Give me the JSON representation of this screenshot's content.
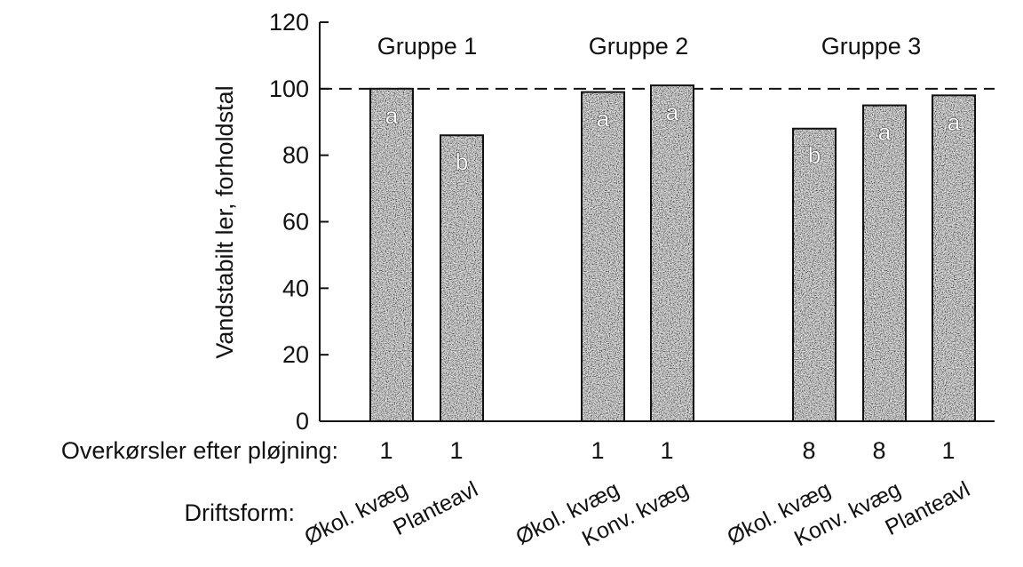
{
  "chart_data": {
    "type": "bar",
    "ylabel": "Vandstabilt ler, forholdstal",
    "ylim": [
      0,
      120
    ],
    "yticks": [
      0,
      20,
      40,
      60,
      80,
      100,
      120
    ],
    "reference_line": 100,
    "groups": [
      {
        "label": "Gruppe 1",
        "bars": [
          {
            "driftsform": "Økol. kvæg",
            "overkorsler": "1",
            "value": 100,
            "letter": "a"
          },
          {
            "driftsform": "Planteavl",
            "overkorsler": "1",
            "value": 86,
            "letter": "b"
          }
        ]
      },
      {
        "label": "Gruppe 2",
        "bars": [
          {
            "driftsform": "Økol. kvæg",
            "overkorsler": "1",
            "value": 99,
            "letter": "a"
          },
          {
            "driftsform": "Konv. kvæg",
            "overkorsler": "1",
            "value": 101,
            "letter": "a"
          }
        ]
      },
      {
        "label": "Gruppe 3",
        "bars": [
          {
            "driftsform": "Økol. kvæg",
            "overkorsler": "8",
            "value": 88,
            "letter": "b"
          },
          {
            "driftsform": "Konv. kvæg",
            "overkorsler": "8",
            "value": 95,
            "letter": "a"
          },
          {
            "driftsform": "Planteavl",
            "overkorsler": "1",
            "value": 98,
            "letter": "a"
          }
        ]
      }
    ],
    "row_labels": {
      "overkorsler": "Overkørsler efter pløjning:",
      "driftsform": "Driftsform:"
    }
  }
}
